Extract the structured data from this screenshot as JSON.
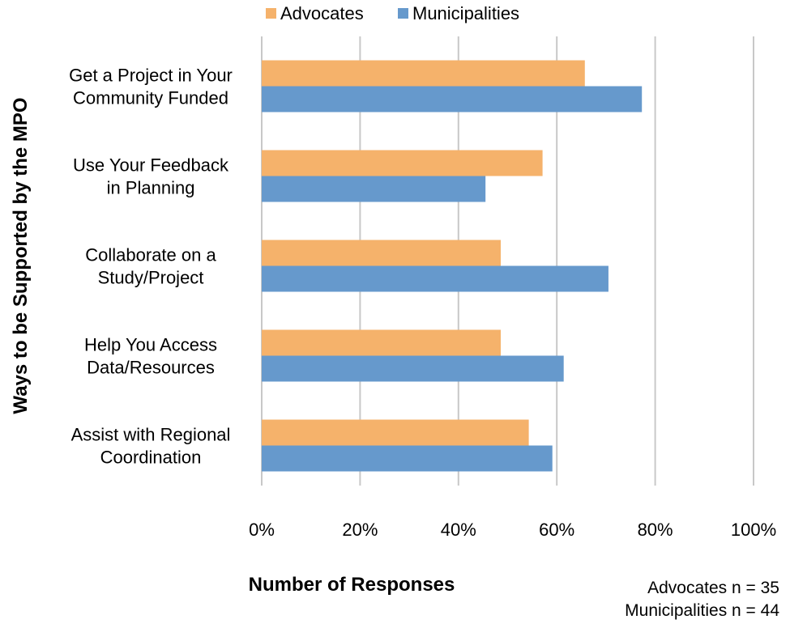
{
  "chart_data": {
    "type": "bar",
    "orientation": "horizontal",
    "categories": [
      [
        "Get a Project in Your",
        "Community Funded"
      ],
      [
        "Use Your Feedback",
        "in Planning"
      ],
      [
        "Collaborate on a",
        "Study/Project"
      ],
      [
        "Help You Access",
        "Data/Resources"
      ],
      [
        "Assist with Regional",
        "Coordination"
      ]
    ],
    "series": [
      {
        "name": "Advocates",
        "color": "#f5b26b",
        "values": [
          65.7,
          57.1,
          48.6,
          48.6,
          54.3
        ]
      },
      {
        "name": "Municipalities",
        "color": "#6699cc",
        "values": [
          77.3,
          45.5,
          70.5,
          61.4,
          59.1
        ]
      }
    ],
    "xlim": [
      0,
      100
    ],
    "xticks": [
      0,
      20,
      40,
      60,
      80,
      100
    ],
    "tick_labels": [
      "0%",
      "20%",
      "40%",
      "60%",
      "80%",
      "100%"
    ],
    "xlabel": "Number of Responses",
    "ylabel": "Ways to be Supported by the MPO",
    "legend_position": "top",
    "grid": true,
    "notes": [
      "Advocates n = 35",
      "Municipalities n = 44"
    ]
  }
}
